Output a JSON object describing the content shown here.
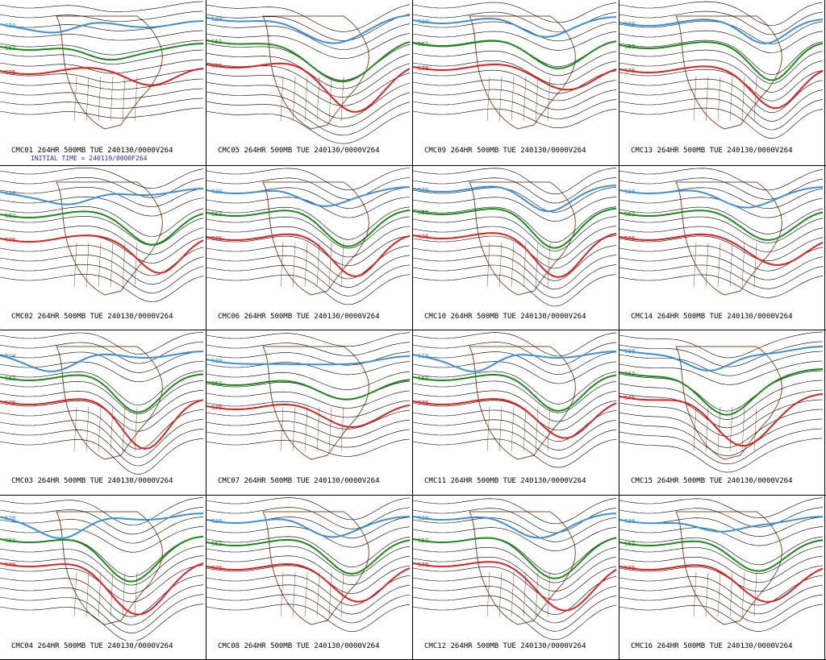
{
  "panels": [
    {
      "caption": "CMC01 264HR 500MB TUE 240130/0000V264",
      "init": "INITIAL TIME = 240119/0000F264",
      "labels": [
        "528",
        "552",
        "576"
      ]
    },
    {
      "caption": "CMC05 264HR 500MB TUE 240130/0000V264",
      "labels": [
        "528",
        "552",
        "576"
      ]
    },
    {
      "caption": "CMC09 264HR 500MB TUE 240130/0000V264",
      "labels": [
        "528",
        "552",
        "576"
      ]
    },
    {
      "caption": "CMC13 264HR 500MB TUE 240130/0000V264",
      "labels": [
        "528",
        "552",
        "576"
      ]
    },
    {
      "caption": "CMC02 264HR 500MB TUE 240130/0000V264",
      "labels": [
        "528",
        "552",
        "576"
      ]
    },
    {
      "caption": "CMC06 264HR 500MB TUE 240130/0000V264",
      "labels": [
        "528",
        "552",
        "576"
      ]
    },
    {
      "caption": "CMC10 264HR 500MB TUE 240130/0000V264",
      "labels": [
        "528",
        "552",
        "576"
      ]
    },
    {
      "caption": "CMC14 264HR 500MB TUE 240130/0000V264",
      "labels": [
        "528",
        "552",
        "576"
      ]
    },
    {
      "caption": "CMC03 264HR 500MB TUE 240130/0000V264",
      "labels": [
        "528",
        "552",
        "576"
      ]
    },
    {
      "caption": "CMC07 264HR 500MB TUE 240130/0000V264",
      "labels": [
        "528",
        "552",
        "576"
      ]
    },
    {
      "caption": "CMC11 264HR 500MB TUE 240130/0000V264",
      "labels": [
        "528",
        "552",
        "576"
      ]
    },
    {
      "caption": "CMC15 264HR 500MB TUE 240130/0000V264",
      "labels": [
        "528",
        "552",
        "576"
      ]
    },
    {
      "caption": "CMC04 264HR 500MB TUE 240130/0000V264",
      "labels": [
        "528",
        "552",
        "576"
      ]
    },
    {
      "caption": "CMC08 264HR 500MB TUE 240130/0000V264",
      "labels": [
        "528",
        "552",
        "576"
      ]
    },
    {
      "caption": "CMC12 264HR 500MB TUE 240130/0000V264",
      "labels": [
        "528",
        "552",
        "576"
      ]
    },
    {
      "caption": "CMC16 264HR 500MB TUE 240130/0000V264",
      "labels": [
        "528",
        "552",
        "576"
      ]
    }
  ],
  "colors": {
    "c528": "#3a8fe0",
    "c552": "#1a8a1a",
    "c576": "#e0201e",
    "contour": "#000000",
    "coast": "#8b4a22"
  }
}
